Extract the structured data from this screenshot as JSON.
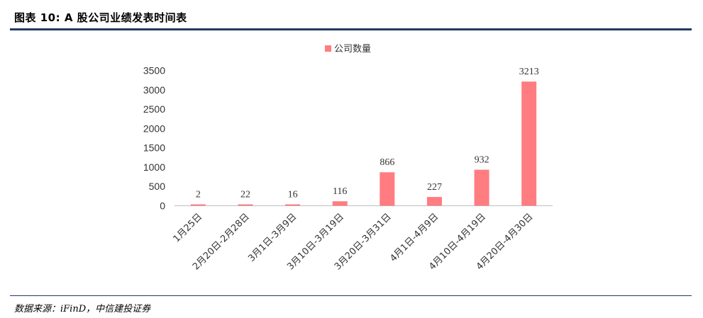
{
  "header": {
    "title": "图表 10: A 股公司业绩发表时间表"
  },
  "footer": {
    "source": "数据来源：iFinD，中信建投证券"
  },
  "chart_data": {
    "type": "bar",
    "categories": [
      "1月25日",
      "2月20日-2月28日",
      "3月1日-3月9日",
      "3月10日-3月19日",
      "3月20日-3月31日",
      "4月1日-4月9日",
      "4月10日-4月19日",
      "4月20日-4月30日"
    ],
    "series": [
      {
        "name": "公司数量",
        "values": [
          2,
          22,
          16,
          116,
          866,
          227,
          932,
          3213
        ]
      }
    ],
    "data_labels": [
      "2",
      "22",
      "16",
      "116",
      "866",
      "227",
      "932",
      "3213"
    ],
    "y_ticks": [
      "0",
      "500",
      "1000",
      "1500",
      "2000",
      "2500",
      "3000",
      "3500"
    ],
    "ylim": [
      0,
      3500
    ],
    "grid": false,
    "legend_position": "top",
    "bar_color": "#ff7c80"
  }
}
